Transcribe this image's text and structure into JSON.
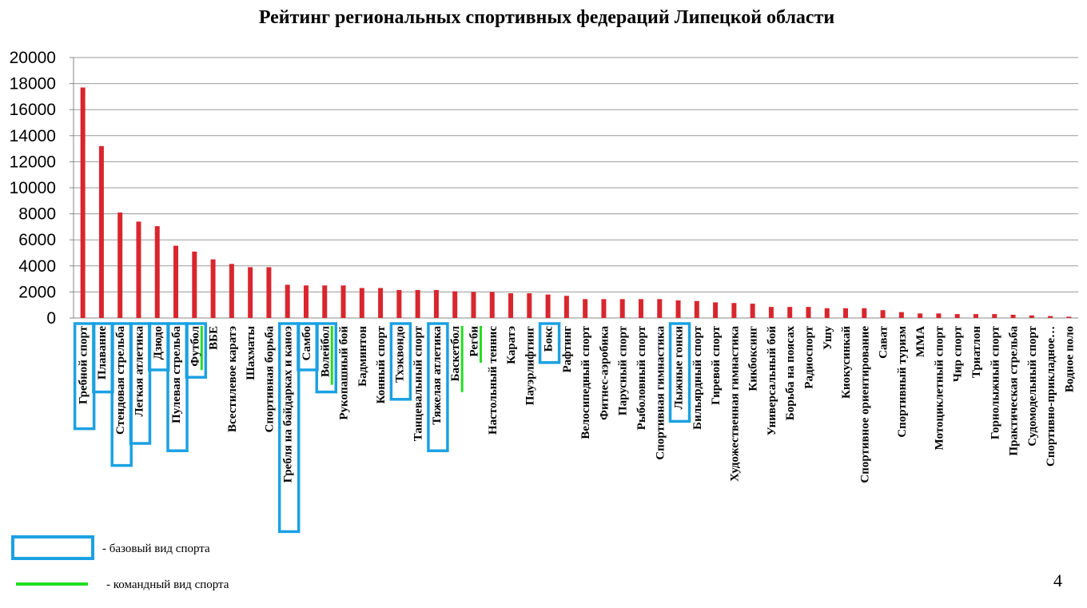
{
  "chart_data": {
    "type": "bar",
    "title": "Рейтинг региональных спортивных федераций Липецкой области",
    "xlabel": "",
    "ylabel": "",
    "ylim": [
      0,
      20000
    ],
    "yticks": [
      0,
      2000,
      4000,
      6000,
      8000,
      10000,
      12000,
      14000,
      16000,
      18000,
      20000
    ],
    "grid": true,
    "bar_color": "#d9262e",
    "categories": [
      "Гребной спорт",
      "Плавание",
      "Стендовая стрельба",
      "Легкая атлетика",
      "Дзюдо",
      "Пулевая стрельба",
      "Футбол",
      "ВБЕ",
      "Всестилевое каратэ",
      "Шахматы",
      "Спортивная борьба",
      "Гребля на байдарках и каноэ",
      "Самбо",
      "Волейбол",
      "Рукопашный бой",
      "Бадминтон",
      "Конный спорт",
      "Тхэквондо",
      "Танцевальный спорт",
      "Тяжелая атлетика",
      "Баскетбол",
      "Регби",
      "Настольный теннис",
      "Каратэ",
      "Пауэрлифтинг",
      "Бокс",
      "Рафтинг",
      "Велосипедный спорт",
      "Фитнес-аэробика",
      "Парусный спорт",
      "Рыболовный спорт",
      "Спортивная гимнастика",
      "Лыжные гонки",
      "Бильярдный спорт",
      "Гиревой спорт",
      "Художественная гимнастика",
      "Кикбоксинг",
      "Универсальный бой",
      "Борьба на поясах",
      "Радиоспорт",
      "Ушу",
      "Киокусинкай",
      "Спортивное ориентирование",
      "Сават",
      "Спортивный туризм",
      "ММА",
      "Мотоциклетный спорт",
      "Чир спорт",
      "Триатлон",
      "Горнолыжный спорт",
      "Практическая стрельба",
      "Судомодельный спорт",
      "Спортивно-прикладное…",
      "Водное поло"
    ],
    "values": [
      17700,
      13200,
      8100,
      7400,
      7050,
      5550,
      5100,
      4500,
      4150,
      3900,
      3900,
      2550,
      2500,
      2500,
      2500,
      2300,
      2300,
      2150,
      2150,
      2150,
      2050,
      2000,
      2000,
      1900,
      1900,
      1800,
      1700,
      1450,
      1450,
      1450,
      1450,
      1450,
      1350,
      1300,
      1200,
      1150,
      1100,
      850,
      850,
      850,
      750,
      750,
      750,
      600,
      450,
      350,
      350,
      300,
      300,
      300,
      250,
      200,
      150,
      100
    ],
    "base_sports": [
      "Гребной спорт",
      "Плавание",
      "Стендовая стрельба",
      "Легкая атлетика",
      "Дзюдо",
      "Пулевая стрельба",
      "Футбол",
      "Гребля на байдарках и каноэ",
      "Самбо",
      "Волейбол",
      "Тхэквондо",
      "Тяжелая атлетика",
      "Бокс",
      "Лыжные гонки"
    ],
    "team_sports": [
      "Футбол",
      "Волейбол",
      "Баскетбол",
      "Регби"
    ],
    "legend": {
      "base_label": "- базовый вид спорта",
      "team_label": "- командный вид спорта",
      "base_color": "#1ba1e2",
      "team_color": "#22dd22"
    }
  },
  "page_number": "4"
}
